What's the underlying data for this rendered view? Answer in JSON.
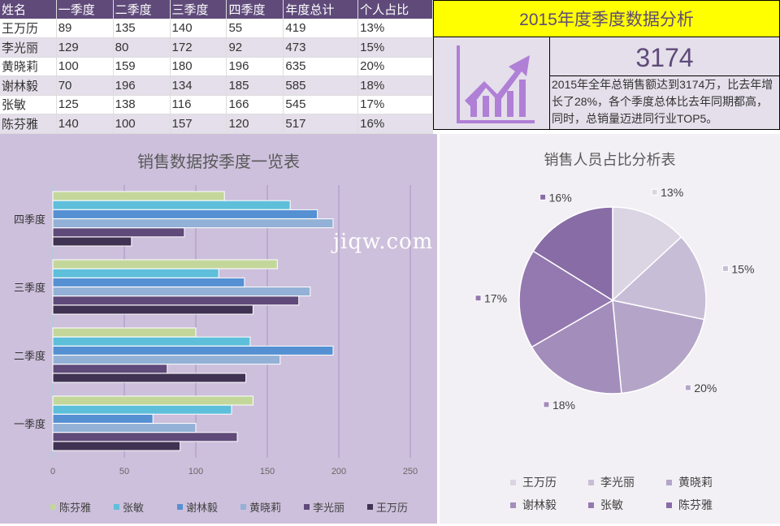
{
  "table": {
    "headers": [
      "姓名",
      "一季度",
      "二季度",
      "三季度",
      "四季度",
      "年度总计",
      "个人占比"
    ],
    "rows": [
      [
        "王万历",
        "89",
        "135",
        "140",
        "55",
        "419",
        "13%"
      ],
      [
        "李光丽",
        "129",
        "80",
        "172",
        "92",
        "473",
        "15%"
      ],
      [
        "黄晓莉",
        "100",
        "159",
        "180",
        "196",
        "635",
        "20%"
      ],
      [
        "谢林毅",
        "70",
        "196",
        "134",
        "185",
        "585",
        "18%"
      ],
      [
        "张敏",
        "125",
        "138",
        "116",
        "166",
        "545",
        "17%"
      ],
      [
        "陈芬雅",
        "140",
        "100",
        "157",
        "120",
        "517",
        "16%"
      ]
    ]
  },
  "summary": {
    "title": "2015年度季度数据分析",
    "icon": "growth-chart-icon",
    "total": "3174",
    "description": "2015年全年总销售额达到3174万，比去年增长了28%，各个季度总体比去年同期都高，同时，总销量迈进同行业TOP5。"
  },
  "watermark": "jiqw.com",
  "chart_data": [
    {
      "type": "bar",
      "orientation": "horizontal",
      "title": "销售数据按季度一览表",
      "categories": [
        "一季度",
        "二季度",
        "三季度",
        "四季度"
      ],
      "xlim": [
        0,
        250
      ],
      "xticks": [
        "0",
        "50",
        "100",
        "150",
        "200",
        "250"
      ],
      "legend": "bottom",
      "series": [
        {
          "name": "王万历",
          "color": "#3f3252",
          "values": [
            89,
            135,
            140,
            55
          ]
        },
        {
          "name": "李光丽",
          "color": "#5f4a7a",
          "values": [
            129,
            80,
            172,
            92
          ]
        },
        {
          "name": "黄晓莉",
          "color": "#93b1d6",
          "values": [
            100,
            159,
            180,
            196
          ]
        },
        {
          "name": "谢林毅",
          "color": "#5590d2",
          "values": [
            70,
            196,
            134,
            185
          ]
        },
        {
          "name": "张敏",
          "color": "#5ebfda",
          "values": [
            125,
            138,
            116,
            166
          ]
        },
        {
          "name": "陈芬雅",
          "color": "#c3d79b",
          "values": [
            140,
            100,
            157,
            120
          ]
        }
      ]
    },
    {
      "type": "pie",
      "title": "销售人员占比分析表",
      "legend": "bottom",
      "labels": [
        "王万历",
        "李光丽",
        "黄晓莉",
        "谢林毅",
        "张敏",
        "陈芬雅"
      ],
      "values": [
        13,
        15,
        20,
        18,
        17,
        16
      ],
      "value_labels": [
        "13%",
        "15%",
        "20%",
        "18%",
        "17%",
        "16%"
      ],
      "colors": [
        "#dbd4e3",
        "#c8bdd6",
        "#b4a5c8",
        "#a38dbb",
        "#9479b0",
        "#886ca6"
      ]
    }
  ]
}
